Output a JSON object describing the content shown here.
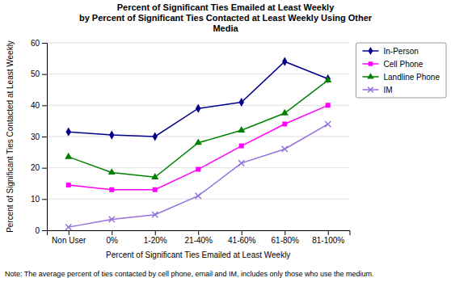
{
  "chart_data": {
    "type": "line",
    "title": "Percent of Significant Ties Emailed at Least Weekly\nby Percent of Significant Ties Contacted at Least Weekly Using Other\nMedia",
    "x_label": "Percent of Significant Ties Emailed at Least Weekly",
    "y_label": "Percent of Significant Ties Contacted at Least Weekly",
    "annotations": [
      "Note: The average percent of ties contacted by cell phone, email and IM, includes only those who use the medium."
    ],
    "categories": [
      "Non User",
      "0%",
      "1-20%",
      "21-40%",
      "41-60%",
      "61-80%",
      "81-100%"
    ],
    "series": [
      {
        "name": "In-Person",
        "color": "#00008B",
        "marker": "diamond",
        "values": [
          31.5,
          30.5,
          30.0,
          39.0,
          41.0,
          54.0,
          48.5
        ]
      },
      {
        "name": "Cell Phone",
        "color": "#FF00FF",
        "marker": "square",
        "values": [
          14.5,
          13.0,
          13.0,
          19.5,
          27.0,
          34.0,
          40.0
        ]
      },
      {
        "name": "Landline Phone",
        "color": "#008000",
        "marker": "triangle",
        "values": [
          23.5,
          18.5,
          17.0,
          28.0,
          32.0,
          37.5,
          48.0
        ]
      },
      {
        "name": "IM",
        "color": "#9370DB",
        "marker": "x",
        "values": [
          1.0,
          3.5,
          5.0,
          11.0,
          21.5,
          26.0,
          34.0
        ]
      }
    ],
    "ylim": [
      0,
      60
    ],
    "yticks": [
      0,
      10,
      20,
      30,
      40,
      50,
      60
    ],
    "grid": true,
    "legend": "right"
  }
}
